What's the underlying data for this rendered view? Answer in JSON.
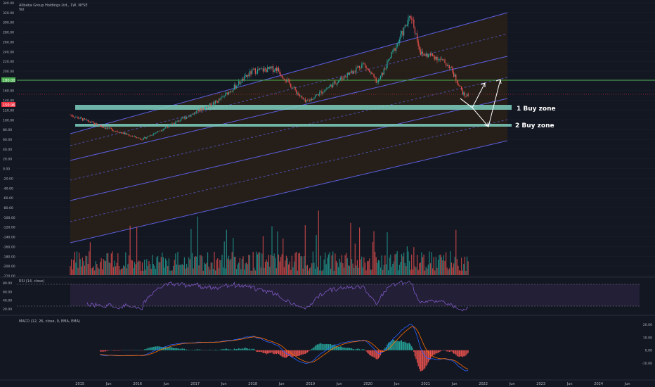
{
  "header": {
    "symbol_title": "Alibaba Group Holdings Ltd., 1W, NYSE",
    "sub": "Vol",
    "rsi_title": "RSI (14, close)",
    "macd_title": "MACD (12, 26, close, 9, EMA, EMA)"
  },
  "price_axis": {
    "ticks": [
      "340.00",
      "320.00",
      "300.00",
      "280.00",
      "260.00",
      "240.00",
      "220.00",
      "200.00",
      "180.00",
      "160.00",
      "140.00",
      "120.00",
      "100.00",
      "80.00",
      "60.00",
      "40.00",
      "20.00",
      "0.00",
      "-20.00",
      "-40.00",
      "-60.00",
      "-80.00",
      "-100.00",
      "-120.00",
      "-140.00",
      "-160.00",
      "-180.00",
      "-200.00",
      "-220.00"
    ],
    "badges": [
      {
        "text": "180.00",
        "color": "#4caf50"
      },
      {
        "text": "150.96",
        "color": "#f23645"
      }
    ]
  },
  "rsi_axis": {
    "ticks": [
      "80.00",
      "60.00",
      "40.00",
      "20.00"
    ]
  },
  "macd_axis": {
    "ticks": [
      "20.00",
      "10.00",
      "0.00",
      "-10.00"
    ]
  },
  "time_axis": {
    "ticks": [
      "2015",
      "Jun",
      "2016",
      "Jun",
      "2017",
      "Jun",
      "2018",
      "Jun",
      "2019",
      "Jun",
      "2020",
      "Jun",
      "2021",
      "Jun",
      "2022",
      "Jun",
      "2023",
      "Jun",
      "2024",
      "Jun"
    ]
  },
  "annotations": {
    "zone1_label": "1 Buy zone",
    "zone2_label": "2 Buy zone"
  },
  "colors": {
    "background": "#131722",
    "channel_line": "#5b5fe0",
    "channel_mid": "#4a4ea8",
    "channel_fill": "#3a2a1a",
    "zone_fill": "#7ecfc0",
    "resistance": "#4caf50",
    "up_candle": "#26a69a",
    "down_candle": "#ef5350",
    "rsi_line": "#7e57c2",
    "macd_line": "#2962ff",
    "signal_line": "#ff6d00"
  },
  "chart_data": {
    "type": "candlestick",
    "title": "Alibaba Group Holdings Ltd., 1W, NYSE",
    "x_range": [
      "2014-11",
      "2024-11"
    ],
    "y_range": [
      -220,
      340
    ],
    "levels": {
      "resistance": 180,
      "last_price": 150.96,
      "zone1": [
        112,
        122
      ],
      "zone2": [
        84,
        88
      ]
    },
    "key_points": [
      {
        "date": "2014-11",
        "price": 110
      },
      {
        "date": "2015-06",
        "price": 85
      },
      {
        "date": "2016-02",
        "price": 60
      },
      {
        "date": "2016-10",
        "price": 100
      },
      {
        "date": "2017-06",
        "price": 140
      },
      {
        "date": "2018-01",
        "price": 200
      },
      {
        "date": "2018-06",
        "price": 205
      },
      {
        "date": "2018-12",
        "price": 135
      },
      {
        "date": "2019-06",
        "price": 175
      },
      {
        "date": "2019-12",
        "price": 215
      },
      {
        "date": "2020-03",
        "price": 175
      },
      {
        "date": "2020-10",
        "price": 315
      },
      {
        "date": "2020-12",
        "price": 235
      },
      {
        "date": "2021-03",
        "price": 230
      },
      {
        "date": "2021-06",
        "price": 210
      },
      {
        "date": "2021-09",
        "price": 150
      }
    ],
    "rsi": {
      "range": [
        20,
        80
      ],
      "bands": [
        70,
        30
      ]
    },
    "macd": {
      "range": [
        -20,
        25
      ]
    }
  }
}
